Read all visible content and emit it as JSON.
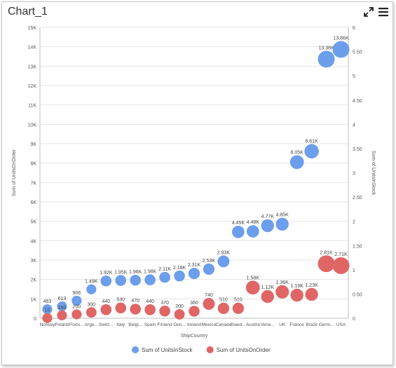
{
  "window": {
    "title": "Chart_1"
  },
  "toolbar": {
    "expand_icon": "expand-icon",
    "menu_icon": "hamburger-menu-icon"
  },
  "chart_data": {
    "type": "scatter",
    "title": "",
    "xlabel": "ShipCountry",
    "ylabel": "Sum of UnitsOnOrder",
    "y2label": "Sum of UnitsInStock",
    "categories": [
      "Norway",
      "Poland",
      "Portu...",
      "Arge...",
      "Switz...",
      "Italy",
      "Belgi...",
      "Spain",
      "Finland",
      "Den...",
      "Ireland",
      "Mexico",
      "Canada",
      "Swed...",
      "Austria",
      "Vene...",
      "UK",
      "France",
      "Brazil",
      "Germ...",
      "USA"
    ],
    "y_ticks": [
      "0",
      "1K",
      "2K",
      "3K",
      "4K",
      "5K",
      "6K",
      "7K",
      "8K",
      "9K",
      "10K",
      "11K",
      "12K",
      "13K",
      "14K",
      "15K"
    ],
    "y2_ticks": [
      "0",
      "0.50",
      "1",
      "1.50",
      "2",
      "2.50",
      "3",
      "3.50",
      "4",
      "4.50",
      "5",
      "5.50",
      "6"
    ],
    "ylim": [
      0,
      15000
    ],
    "y2lim": [
      0,
      6
    ],
    "grid": true,
    "legend_position": "bottom",
    "series": [
      {
        "name": "Sum of UnitsInStock",
        "color": "#6d9eeb",
        "values": [
          463,
          613,
          906,
          1490,
          1920,
          1950,
          1960,
          1980,
          2110,
          2180,
          2310,
          2530,
          2930,
          4450,
          4480,
          4770,
          4850,
          8050,
          8610,
          13360,
          13860
        ],
        "labels": [
          "463",
          "613",
          "906",
          "1.49K",
          "1.92K",
          "1.95K",
          "1.96K",
          "1.98K",
          "2.11K",
          "2.18K",
          "2.31K",
          "2.53K",
          "2.93K",
          "4.45K",
          "4.48K",
          "4.77K",
          "4.85K",
          "8.05K",
          "8.61K",
          "13.36K",
          "13.86K"
        ],
        "sizes": [
          0.3,
          0.3,
          0.3,
          0.3,
          0.4,
          0.4,
          0.4,
          0.4,
          0.4,
          0.4,
          0.45,
          0.45,
          0.5,
          0.55,
          0.55,
          0.6,
          0.6,
          0.7,
          0.75,
          1.0,
          1.0
        ]
      },
      {
        "name": "Sum of UnitsOnOrder",
        "color": "#e06666",
        "values": [
          10,
          150,
          200,
          300,
          440,
          530,
          470,
          440,
          370,
          200,
          360,
          740,
          510,
          510,
          1580,
          1120,
          1360,
          1190,
          1230,
          2810,
          2710
        ],
        "labels": [
          "10",
          "150",
          "200",
          "300",
          "440",
          "530",
          "470",
          "440",
          "370",
          "200",
          "360",
          "740",
          "510",
          "510",
          "1.58K",
          "1.12K",
          "1.36K",
          "1.19K",
          "1.23K",
          "2.81K",
          "2.71K"
        ],
        "sizes": [
          0.3,
          0.3,
          0.3,
          0.35,
          0.4,
          0.4,
          0.4,
          0.4,
          0.4,
          0.35,
          0.4,
          0.5,
          0.45,
          0.45,
          0.7,
          0.6,
          0.65,
          0.6,
          0.6,
          1.0,
          1.0
        ]
      }
    ]
  }
}
